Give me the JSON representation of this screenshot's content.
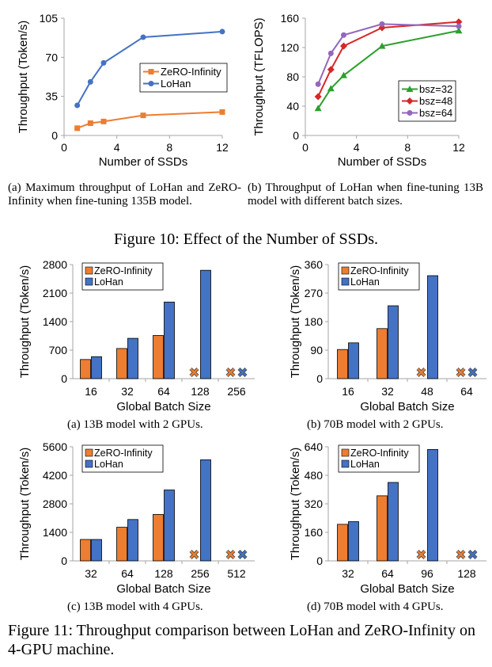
{
  "chart_data": [
    {
      "type": "line",
      "xlabel": "Number of SSDs",
      "ylabel": "Throughput (Token/s)",
      "xlim": [
        0,
        12
      ],
      "ylim": [
        0,
        105
      ],
      "xticks": [
        "0",
        "4",
        "8",
        "12"
      ],
      "yticks": [
        "0",
        "35",
        "70",
        "105"
      ],
      "legend_position": "right-middle",
      "series": [
        {
          "name": "ZeRO-Infinity",
          "color": "#ED7D31",
          "marker": "square",
          "x": [
            1,
            2,
            3,
            6,
            12
          ],
          "y": [
            6.5,
            11,
            12.5,
            18,
            21
          ]
        },
        {
          "name": "LoHan",
          "color": "#4472C4",
          "marker": "circle",
          "x": [
            1,
            2,
            3,
            6,
            12
          ],
          "y": [
            27,
            48,
            65,
            88,
            93
          ]
        }
      ]
    },
    {
      "type": "line",
      "xlabel": "Number of SSDs",
      "ylabel": "Throughput (TFLOPS)",
      "xlim": [
        0,
        12
      ],
      "ylim": [
        0,
        160
      ],
      "xticks": [
        "0",
        "4",
        "8",
        "12"
      ],
      "yticks": [
        "0",
        "40",
        "80",
        "120",
        "160"
      ],
      "legend_position": "bottom-right",
      "series": [
        {
          "name": "bsz=32",
          "color": "#2CA02C",
          "marker": "triangle",
          "x": [
            1,
            2,
            3,
            6,
            12
          ],
          "y": [
            37,
            64,
            82,
            122,
            143
          ]
        },
        {
          "name": "bsz=48",
          "color": "#D62728",
          "marker": "diamond",
          "x": [
            1,
            2,
            3,
            6,
            12
          ],
          "y": [
            53,
            90,
            122,
            147,
            155
          ]
        },
        {
          "name": "bsz=64",
          "color": "#9467BD",
          "marker": "circle",
          "x": [
            1,
            2,
            3,
            6,
            12
          ],
          "y": [
            70,
            112,
            137,
            152,
            149
          ]
        }
      ]
    },
    {
      "type": "bar",
      "xlabel": "Global Batch Size",
      "ylabel": "Throughput (Token/s)",
      "ylim": [
        0,
        2800
      ],
      "yticks": [
        "0",
        "700",
        "1400",
        "2100",
        "2800"
      ],
      "categories": [
        "16",
        "32",
        "64",
        "128",
        "256"
      ],
      "legend_position": "top-left",
      "series": [
        {
          "name": "ZeRO-Infinity",
          "color": "#ED7D31",
          "values": [
            470,
            740,
            1060,
            null,
            null
          ]
        },
        {
          "name": "LoHan",
          "color": "#4472C4",
          "values": [
            540,
            990,
            1880,
            2660,
            null
          ]
        }
      ],
      "failed_markers": [
        [
          3,
          0
        ],
        [
          4,
          0
        ],
        [
          4,
          1
        ]
      ]
    },
    {
      "type": "bar",
      "xlabel": "Global Batch Size",
      "ylabel": "Throughput (Token/s)",
      "ylim": [
        0,
        360
      ],
      "yticks": [
        "0",
        "90",
        "180",
        "270",
        "360"
      ],
      "categories": [
        "16",
        "32",
        "48",
        "64"
      ],
      "legend_position": "top-left",
      "series": [
        {
          "name": "ZeRO-Infinity",
          "color": "#ED7D31",
          "values": [
            92,
            158,
            null,
            null
          ]
        },
        {
          "name": "LoHan",
          "color": "#4472C4",
          "values": [
            113,
            230,
            325,
            null
          ]
        }
      ],
      "failed_markers": [
        [
          2,
          0
        ],
        [
          3,
          0
        ],
        [
          3,
          1
        ]
      ]
    },
    {
      "type": "bar",
      "xlabel": "Global Batch Size",
      "ylabel": "Throughput (Token/s)",
      "ylim": [
        0,
        5600
      ],
      "yticks": [
        "0",
        "1400",
        "2800",
        "4200",
        "5600"
      ],
      "categories": [
        "32",
        "64",
        "128",
        "256",
        "512"
      ],
      "legend_position": "top-left",
      "series": [
        {
          "name": "ZeRO-Infinity",
          "color": "#ED7D31",
          "values": [
            1050,
            1650,
            2280,
            null,
            null
          ]
        },
        {
          "name": "LoHan",
          "color": "#4472C4",
          "values": [
            1050,
            2030,
            3480,
            4960,
            null
          ]
        }
      ],
      "failed_markers": [
        [
          3,
          0
        ],
        [
          4,
          0
        ],
        [
          4,
          1
        ]
      ]
    },
    {
      "type": "bar",
      "xlabel": "Global Batch Size",
      "ylabel": "Throughput (Token/s)",
      "ylim": [
        0,
        640
      ],
      "yticks": [
        "0",
        "160",
        "320",
        "480",
        "640"
      ],
      "categories": [
        "32",
        "64",
        "96",
        "128"
      ],
      "legend_position": "top-left",
      "series": [
        {
          "name": "ZeRO-Infinity",
          "color": "#ED7D31",
          "values": [
            205,
            365,
            null,
            null
          ]
        },
        {
          "name": "LoHan",
          "color": "#4472C4",
          "values": [
            220,
            440,
            625,
            null
          ]
        }
      ],
      "failed_markers": [
        [
          2,
          0
        ],
        [
          3,
          0
        ],
        [
          3,
          1
        ]
      ]
    }
  ],
  "captions": {
    "a10": "(a) Maximum throughput of LoHan and ZeRO-Infinity when fine-tuning 135B model.",
    "b10": "(b) Throughput of LoHan when fine-tuning 13B model with different batch sizes.",
    "fig10": "Figure 10: Effect of the Number of SSDs.",
    "a11": "(a) 13B model with 2 GPUs.",
    "b11": "(b) 70B model with 2 GPUs.",
    "c11": "(c) 13B model with 4 GPUs.",
    "d11": "(d) 70B model with 4 GPUs.",
    "fig11": "Figure 11: Throughput comparison between LoHan and ZeRO-Infinity on 4-GPU machine."
  },
  "colors": {
    "axis": "#A6A6A6",
    "text": "#000000"
  }
}
